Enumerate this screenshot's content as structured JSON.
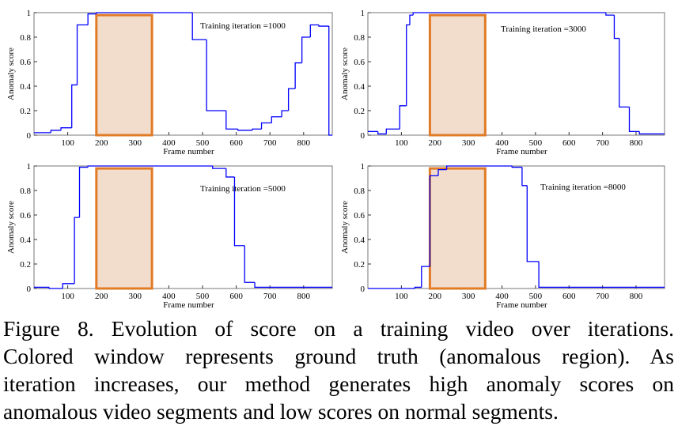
{
  "chart_data": [
    {
      "type": "step",
      "annotation": "Training iteration =1000",
      "x_label": "Frame number",
      "y_label": "Anomaly score",
      "xlim": [
        0,
        885
      ],
      "ylim": [
        0,
        1
      ],
      "xticks": [
        100,
        200,
        300,
        400,
        500,
        600,
        700,
        800
      ],
      "yticks": [
        0,
        0.2,
        0.4,
        0.6,
        0.8,
        1
      ],
      "color": "#0000ff",
      "window_x": [
        185,
        350
      ],
      "window_y": [
        0,
        0.98
      ],
      "window_color": "#e07b28",
      "window_fill": "#f2dccb",
      "x": [
        0,
        50,
        80,
        112,
        128,
        160,
        185,
        470,
        512,
        570,
        605,
        648,
        675,
        705,
        735,
        755,
        775,
        795,
        820,
        845,
        875
      ],
      "values": [
        0.02,
        0.04,
        0.06,
        0.41,
        0.9,
        0.99,
        1,
        0.78,
        0.2,
        0.05,
        0.04,
        0.05,
        0.1,
        0.15,
        0.2,
        0.38,
        0.59,
        0.8,
        0.9,
        0.89,
        0
      ]
    },
    {
      "type": "step",
      "annotation": "Training iteration =3000",
      "x_label": "Frame number",
      "y_label": "Anomaly score",
      "xlim": [
        0,
        885
      ],
      "ylim": [
        0,
        1
      ],
      "xticks": [
        100,
        200,
        300,
        400,
        500,
        600,
        700,
        800
      ],
      "yticks": [
        0,
        0.2,
        0.4,
        0.6,
        0.8,
        1
      ],
      "color": "#0000ff",
      "window_x": [
        185,
        350
      ],
      "window_y": [
        0,
        0.98
      ],
      "window_color": "#e07b28",
      "window_fill": "#f2dccb",
      "x": [
        0,
        30,
        55,
        95,
        115,
        125,
        135,
        710,
        735,
        750,
        780,
        810
      ],
      "values": [
        0.03,
        0.01,
        0.05,
        0.24,
        0.9,
        0.98,
        1,
        0.98,
        0.79,
        0.23,
        0.03,
        0.01
      ]
    },
    {
      "type": "step",
      "annotation": "Training iteration =5000",
      "x_label": "Frame number",
      "y_label": "Anomaly score",
      "xlim": [
        0,
        885
      ],
      "ylim": [
        0,
        1
      ],
      "xticks": [
        100,
        200,
        300,
        400,
        500,
        600,
        700,
        800
      ],
      "yticks": [
        0,
        0.2,
        0.4,
        0.6,
        0.8,
        1
      ],
      "color": "#0000ff",
      "window_x": [
        185,
        350
      ],
      "window_y": [
        0,
        0.98
      ],
      "window_color": "#e07b28",
      "window_fill": "#f2dccb",
      "x": [
        0,
        45,
        85,
        120,
        135,
        160,
        530,
        570,
        595,
        625,
        655
      ],
      "values": [
        0.01,
        0,
        0.04,
        0.58,
        0.99,
        1,
        0.98,
        0.91,
        0.35,
        0.05,
        0.01
      ]
    },
    {
      "type": "step",
      "annotation": "Training iteration =8000",
      "x_label": "Frame number",
      "y_label": "Anomaly score",
      "xlim": [
        0,
        885
      ],
      "ylim": [
        0,
        1
      ],
      "xticks": [
        100,
        200,
        300,
        400,
        500,
        600,
        700,
        800
      ],
      "yticks": [
        0,
        0.2,
        0.4,
        0.6,
        0.8,
        1
      ],
      "color": "#0000ff",
      "window_x": [
        185,
        350
      ],
      "window_y": [
        0,
        0.98
      ],
      "window_color": "#e07b28",
      "window_fill": "#f2dccb",
      "x": [
        0,
        140,
        160,
        185,
        210,
        235,
        430,
        460,
        475,
        510
      ],
      "values": [
        0,
        0.01,
        0.18,
        0.92,
        0.97,
        1,
        0.99,
        0.84,
        0.22,
        0.01
      ]
    }
  ],
  "caption": {
    "lines": [
      "Figure 8. Evolution of score on a training video over iterations.",
      "Colored window represents ground truth (anomalous region).  As",
      "iteration increases, our method generates high anomaly scores on",
      "anomalous video segments and low scores on normal segments."
    ]
  }
}
